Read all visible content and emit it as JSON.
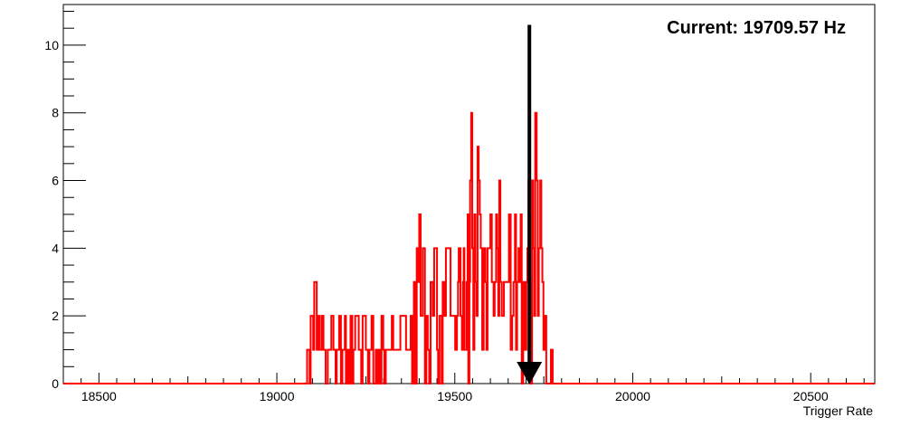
{
  "chart_data": {
    "type": "histogram",
    "title": "",
    "xlabel": "Trigger Rate",
    "ylabel": "",
    "xlim": [
      18400,
      20680
    ],
    "ylim": [
      0,
      11.2
    ],
    "x_ticks": [
      18500,
      19000,
      19500,
      20000,
      20500
    ],
    "y_ticks": [
      0,
      2,
      4,
      6,
      8,
      10
    ],
    "grid": false,
    "line_color": "#ff0000",
    "annotation": {
      "text": "Current: 19709.57 Hz",
      "arrow_x": 19709.57,
      "arrow_top_y": 10.6,
      "arrow_bottom_y": 0,
      "color": "#000000"
    },
    "bins": [
      [
        19085,
        1
      ],
      [
        19092,
        0
      ],
      [
        19095,
        2
      ],
      [
        19102,
        1
      ],
      [
        19105,
        3
      ],
      [
        19112,
        1
      ],
      [
        19116,
        2
      ],
      [
        19120,
        1
      ],
      [
        19126,
        2
      ],
      [
        19131,
        1
      ],
      [
        19137,
        0
      ],
      [
        19143,
        1
      ],
      [
        19153,
        2
      ],
      [
        19159,
        1
      ],
      [
        19165,
        0
      ],
      [
        19168,
        1
      ],
      [
        19175,
        2
      ],
      [
        19180,
        0
      ],
      [
        19184,
        1
      ],
      [
        19191,
        2
      ],
      [
        19194,
        0
      ],
      [
        19198,
        1
      ],
      [
        19203,
        0
      ],
      [
        19207,
        2
      ],
      [
        19212,
        0
      ],
      [
        19215,
        1
      ],
      [
        19220,
        2
      ],
      [
        19230,
        1
      ],
      [
        19237,
        0
      ],
      [
        19241,
        2
      ],
      [
        19250,
        1
      ],
      [
        19256,
        0
      ],
      [
        19260,
        1
      ],
      [
        19266,
        2
      ],
      [
        19271,
        0
      ],
      [
        19278,
        1
      ],
      [
        19282,
        0
      ],
      [
        19286,
        1
      ],
      [
        19289,
        0
      ],
      [
        19294,
        2
      ],
      [
        19299,
        1
      ],
      [
        19302,
        0
      ],
      [
        19306,
        1
      ],
      [
        19323,
        2
      ],
      [
        19327,
        1
      ],
      [
        19347,
        2
      ],
      [
        19363,
        1
      ],
      [
        19376,
        2
      ],
      [
        19380,
        0
      ],
      [
        19385,
        3
      ],
      [
        19390,
        0
      ],
      [
        19393,
        4
      ],
      [
        19396,
        3
      ],
      [
        19400,
        5
      ],
      [
        19404,
        2
      ],
      [
        19410,
        4
      ],
      [
        19416,
        0
      ],
      [
        19420,
        2
      ],
      [
        19424,
        1
      ],
      [
        19428,
        0
      ],
      [
        19432,
        3
      ],
      [
        19438,
        2
      ],
      [
        19442,
        4
      ],
      [
        19450,
        1
      ],
      [
        19453,
        0
      ],
      [
        19457,
        2
      ],
      [
        19463,
        0
      ],
      [
        19466,
        3
      ],
      [
        19470,
        2
      ],
      [
        19475,
        4
      ],
      [
        19488,
        2
      ],
      [
        19501,
        1
      ],
      [
        19506,
        2
      ],
      [
        19509,
        3
      ],
      [
        19511,
        4
      ],
      [
        19516,
        2
      ],
      [
        19520,
        1
      ],
      [
        19523,
        3
      ],
      [
        19525,
        4
      ],
      [
        19527,
        1
      ],
      [
        19533,
        3
      ],
      [
        19536,
        5
      ],
      [
        19538,
        0
      ],
      [
        19541,
        3
      ],
      [
        19543,
        6
      ],
      [
        19546,
        8
      ],
      [
        19549,
        4
      ],
      [
        19552,
        1
      ],
      [
        19555,
        5
      ],
      [
        19558,
        3
      ],
      [
        19561,
        2
      ],
      [
        19564,
        7
      ],
      [
        19567,
        6
      ],
      [
        19570,
        5
      ],
      [
        19573,
        4
      ],
      [
        19577,
        1
      ],
      [
        19581,
        4
      ],
      [
        19586,
        3
      ],
      [
        19589,
        1
      ],
      [
        19592,
        4
      ],
      [
        19600,
        5
      ],
      [
        19604,
        3
      ],
      [
        19609,
        2
      ],
      [
        19612,
        3
      ],
      [
        19616,
        5
      ],
      [
        19619,
        4
      ],
      [
        19622,
        2
      ],
      [
        19625,
        6
      ],
      [
        19628,
        3
      ],
      [
        19632,
        2
      ],
      [
        19638,
        3
      ],
      [
        19652,
        5
      ],
      [
        19657,
        1
      ],
      [
        19661,
        2
      ],
      [
        19665,
        3
      ],
      [
        19669,
        5
      ],
      [
        19672,
        1
      ],
      [
        19675,
        3
      ],
      [
        19679,
        4
      ],
      [
        19682,
        3
      ],
      [
        19685,
        5
      ],
      [
        19688,
        0
      ],
      [
        19692,
        3
      ],
      [
        19697,
        1
      ],
      [
        19701,
        3
      ],
      [
        19704,
        4
      ],
      [
        19707,
        6
      ],
      [
        19710,
        3
      ],
      [
        19713,
        0
      ],
      [
        19717,
        6
      ],
      [
        19720,
        4
      ],
      [
        19723,
        2
      ],
      [
        19726,
        8
      ],
      [
        19730,
        6
      ],
      [
        19733,
        2
      ],
      [
        19736,
        4
      ],
      [
        19740,
        6
      ],
      [
        19743,
        4
      ],
      [
        19746,
        3
      ],
      [
        19749,
        1
      ],
      [
        19752,
        2
      ],
      [
        19757,
        0
      ],
      [
        19770,
        1
      ],
      [
        19775,
        0
      ]
    ]
  }
}
